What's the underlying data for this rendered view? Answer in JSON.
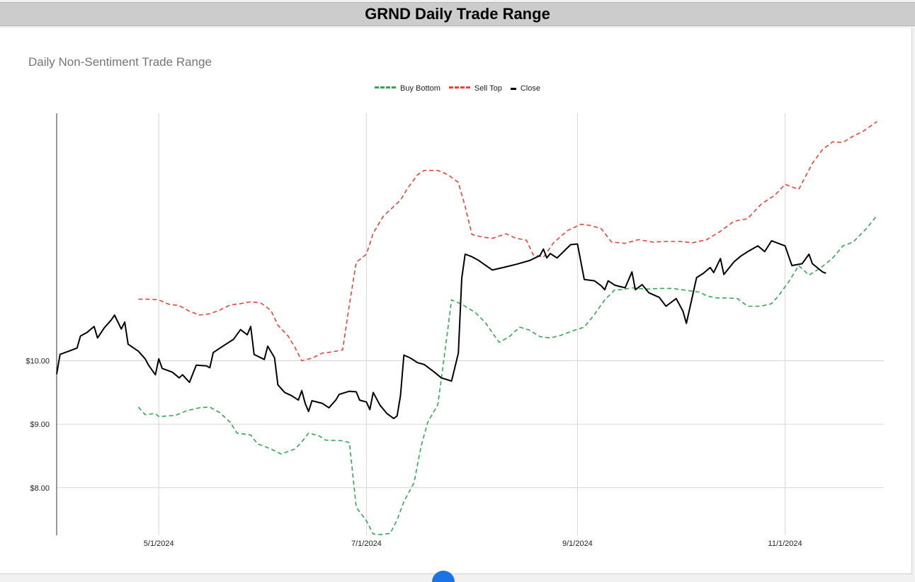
{
  "header": {
    "title": "GRND Daily Trade Range"
  },
  "chart_data": {
    "type": "line",
    "title": "Daily Non-Sentiment Trade Range",
    "xlabel": "",
    "ylabel": "",
    "xlim": [
      "2024-04-01",
      "2024-11-30"
    ],
    "ylim": [
      7.25,
      13.9
    ],
    "y_ticks": [
      {
        "value": 8.0,
        "label": "$8.00"
      },
      {
        "value": 9.0,
        "label": "$9.00"
      },
      {
        "value": 10.0,
        "label": "$10.00"
      }
    ],
    "x_ticks": [
      {
        "date": "2024-05-01",
        "label": "5/1/2024"
      },
      {
        "date": "2024-07-01",
        "label": "7/1/2024"
      },
      {
        "date": "2024-09-01",
        "label": "9/1/2024"
      },
      {
        "date": "2024-11-01",
        "label": "11/1/2024"
      }
    ],
    "grid": true,
    "legend_position": "top-center",
    "series": [
      {
        "name": "Buy Bottom",
        "color": "#34a853",
        "style": "dashed",
        "points": [
          [
            "2024-04-25",
            9.27
          ],
          [
            "2024-04-27",
            9.15
          ],
          [
            "2024-04-30",
            9.17
          ],
          [
            "2024-05-01",
            9.12
          ],
          [
            "2024-05-06",
            9.14
          ],
          [
            "2024-05-09",
            9.21
          ],
          [
            "2024-05-13",
            9.26
          ],
          [
            "2024-05-16",
            9.27
          ],
          [
            "2024-05-19",
            9.18
          ],
          [
            "2024-05-22",
            9.03
          ],
          [
            "2024-05-24",
            8.86
          ],
          [
            "2024-05-28",
            8.83
          ],
          [
            "2024-05-30",
            8.69
          ],
          [
            "2024-06-03",
            8.61
          ],
          [
            "2024-06-06",
            8.53
          ],
          [
            "2024-06-10",
            8.61
          ],
          [
            "2024-06-12",
            8.72
          ],
          [
            "2024-06-14",
            8.86
          ],
          [
            "2024-06-17",
            8.82
          ],
          [
            "2024-06-19",
            8.75
          ],
          [
            "2024-06-24",
            8.74
          ],
          [
            "2024-06-26",
            8.71
          ],
          [
            "2024-06-28",
            7.69
          ],
          [
            "2024-07-01",
            7.48
          ],
          [
            "2024-07-03",
            7.27
          ],
          [
            "2024-07-05",
            7.26
          ],
          [
            "2024-07-08",
            7.28
          ],
          [
            "2024-07-10",
            7.49
          ],
          [
            "2024-07-12",
            7.78
          ],
          [
            "2024-07-15",
            8.08
          ],
          [
            "2024-07-17",
            8.64
          ],
          [
            "2024-07-19",
            9.03
          ],
          [
            "2024-07-22",
            9.31
          ],
          [
            "2024-07-24",
            10.12
          ],
          [
            "2024-07-26",
            10.96
          ],
          [
            "2024-07-29",
            10.89
          ],
          [
            "2024-08-02",
            10.76
          ],
          [
            "2024-08-05",
            10.6
          ],
          [
            "2024-08-07",
            10.44
          ],
          [
            "2024-08-09",
            10.29
          ],
          [
            "2024-08-12",
            10.38
          ],
          [
            "2024-08-15",
            10.53
          ],
          [
            "2024-08-18",
            10.48
          ],
          [
            "2024-08-21",
            10.38
          ],
          [
            "2024-08-24",
            10.36
          ],
          [
            "2024-08-27",
            10.4
          ],
          [
            "2024-08-30",
            10.46
          ],
          [
            "2024-09-03",
            10.53
          ],
          [
            "2024-09-06",
            10.73
          ],
          [
            "2024-09-09",
            10.96
          ],
          [
            "2024-09-12",
            11.12
          ],
          [
            "2024-09-14",
            11.12
          ],
          [
            "2024-09-17",
            11.15
          ],
          [
            "2024-09-21",
            11.13
          ],
          [
            "2024-09-25",
            11.14
          ],
          [
            "2024-09-29",
            11.14
          ],
          [
            "2024-10-03",
            11.11
          ],
          [
            "2024-10-07",
            11.08
          ],
          [
            "2024-10-09",
            11.02
          ],
          [
            "2024-10-12",
            10.99
          ],
          [
            "2024-10-15",
            10.99
          ],
          [
            "2024-10-18",
            10.98
          ],
          [
            "2024-10-21",
            10.86
          ],
          [
            "2024-10-25",
            10.86
          ],
          [
            "2024-10-28",
            10.9
          ],
          [
            "2024-10-30",
            11.02
          ],
          [
            "2024-11-02",
            11.24
          ],
          [
            "2024-11-05",
            11.5
          ],
          [
            "2024-11-08",
            11.35
          ],
          [
            "2024-11-11",
            11.45
          ],
          [
            "2024-11-13",
            11.53
          ],
          [
            "2024-11-15",
            11.62
          ],
          [
            "2024-11-18",
            11.81
          ],
          [
            "2024-11-21",
            11.87
          ],
          [
            "2024-11-25",
            12.09
          ],
          [
            "2024-11-28",
            12.29
          ]
        ]
      },
      {
        "name": "Sell Top",
        "color": "#ea4335",
        "style": "dashed",
        "points": [
          [
            "2024-04-25",
            10.97
          ],
          [
            "2024-04-28",
            10.97
          ],
          [
            "2024-05-01",
            10.96
          ],
          [
            "2024-05-04",
            10.89
          ],
          [
            "2024-05-07",
            10.87
          ],
          [
            "2024-05-10",
            10.78
          ],
          [
            "2024-05-13",
            10.72
          ],
          [
            "2024-05-16",
            10.74
          ],
          [
            "2024-05-19",
            10.8
          ],
          [
            "2024-05-22",
            10.88
          ],
          [
            "2024-05-25",
            10.9
          ],
          [
            "2024-05-28",
            10.93
          ],
          [
            "2024-05-31",
            10.91
          ],
          [
            "2024-06-03",
            10.79
          ],
          [
            "2024-06-05",
            10.56
          ],
          [
            "2024-06-08",
            10.39
          ],
          [
            "2024-06-10",
            10.21
          ],
          [
            "2024-06-12",
            10.0
          ],
          [
            "2024-06-15",
            10.04
          ],
          [
            "2024-06-18",
            10.12
          ],
          [
            "2024-06-21",
            10.14
          ],
          [
            "2024-06-24",
            10.17
          ],
          [
            "2024-06-26",
            10.89
          ],
          [
            "2024-06-28",
            11.55
          ],
          [
            "2024-07-01",
            11.68
          ],
          [
            "2024-07-03",
            12.01
          ],
          [
            "2024-07-06",
            12.28
          ],
          [
            "2024-07-09",
            12.43
          ],
          [
            "2024-07-11",
            12.53
          ],
          [
            "2024-07-13",
            12.71
          ],
          [
            "2024-07-16",
            12.93
          ],
          [
            "2024-07-18",
            13.0
          ],
          [
            "2024-07-22",
            13.0
          ],
          [
            "2024-07-25",
            12.93
          ],
          [
            "2024-07-28",
            12.81
          ],
          [
            "2024-07-30",
            12.43
          ],
          [
            "2024-08-01",
            11.99
          ],
          [
            "2024-08-04",
            11.95
          ],
          [
            "2024-08-07",
            11.93
          ],
          [
            "2024-08-11",
            12.0
          ],
          [
            "2024-08-14",
            11.93
          ],
          [
            "2024-08-17",
            11.9
          ],
          [
            "2024-08-19",
            11.67
          ],
          [
            "2024-08-22",
            11.63
          ],
          [
            "2024-08-25",
            11.86
          ],
          [
            "2024-08-29",
            12.05
          ],
          [
            "2024-09-02",
            12.15
          ],
          [
            "2024-09-05",
            12.13
          ],
          [
            "2024-09-08",
            12.08
          ],
          [
            "2024-09-11",
            11.87
          ],
          [
            "2024-09-15",
            11.85
          ],
          [
            "2024-09-19",
            11.91
          ],
          [
            "2024-09-23",
            11.87
          ],
          [
            "2024-09-27",
            11.88
          ],
          [
            "2024-10-01",
            11.88
          ],
          [
            "2024-10-05",
            11.86
          ],
          [
            "2024-10-09",
            11.91
          ],
          [
            "2024-10-13",
            12.04
          ],
          [
            "2024-10-17",
            12.2
          ],
          [
            "2024-10-21",
            12.24
          ],
          [
            "2024-10-25",
            12.47
          ],
          [
            "2024-10-29",
            12.61
          ],
          [
            "2024-11-01",
            12.78
          ],
          [
            "2024-11-05",
            12.7
          ],
          [
            "2024-11-09",
            13.11
          ],
          [
            "2024-11-12",
            13.33
          ],
          [
            "2024-11-15",
            13.45
          ],
          [
            "2024-11-18",
            13.44
          ],
          [
            "2024-11-21",
            13.54
          ],
          [
            "2024-11-24",
            13.62
          ],
          [
            "2024-11-28",
            13.77
          ]
        ]
      },
      {
        "name": "Close",
        "color": "#000000",
        "style": "solid",
        "points": [
          [
            "2024-04-01",
            9.79
          ],
          [
            "2024-04-02",
            10.1
          ],
          [
            "2024-04-05",
            10.16
          ],
          [
            "2024-04-07",
            10.2
          ],
          [
            "2024-04-08",
            10.39
          ],
          [
            "2024-04-10",
            10.45
          ],
          [
            "2024-04-12",
            10.54
          ],
          [
            "2024-04-13",
            10.36
          ],
          [
            "2024-04-15",
            10.52
          ],
          [
            "2024-04-17",
            10.64
          ],
          [
            "2024-04-18",
            10.72
          ],
          [
            "2024-04-20",
            10.5
          ],
          [
            "2024-04-21",
            10.61
          ],
          [
            "2024-04-22",
            10.26
          ],
          [
            "2024-04-25",
            10.15
          ],
          [
            "2024-04-27",
            10.03
          ],
          [
            "2024-04-28",
            9.93
          ],
          [
            "2024-04-30",
            9.78
          ],
          [
            "2024-05-01",
            10.03
          ],
          [
            "2024-05-02",
            9.88
          ],
          [
            "2024-05-05",
            9.82
          ],
          [
            "2024-05-07",
            9.73
          ],
          [
            "2024-05-08",
            9.78
          ],
          [
            "2024-05-10",
            9.66
          ],
          [
            "2024-05-12",
            9.93
          ],
          [
            "2024-05-15",
            9.92
          ],
          [
            "2024-05-16",
            9.89
          ],
          [
            "2024-05-17",
            10.13
          ],
          [
            "2024-05-19",
            10.2
          ],
          [
            "2024-05-21",
            10.27
          ],
          [
            "2024-05-23",
            10.34
          ],
          [
            "2024-05-25",
            10.49
          ],
          [
            "2024-05-27",
            10.41
          ],
          [
            "2024-05-28",
            10.54
          ],
          [
            "2024-05-29",
            10.1
          ],
          [
            "2024-06-01",
            10.02
          ],
          [
            "2024-06-02",
            10.23
          ],
          [
            "2024-06-04",
            10.05
          ],
          [
            "2024-06-05",
            9.62
          ],
          [
            "2024-06-07",
            9.5
          ],
          [
            "2024-06-09",
            9.45
          ],
          [
            "2024-06-11",
            9.38
          ],
          [
            "2024-06-12",
            9.53
          ],
          [
            "2024-06-13",
            9.33
          ],
          [
            "2024-06-14",
            9.2
          ],
          [
            "2024-06-15",
            9.37
          ],
          [
            "2024-06-18",
            9.33
          ],
          [
            "2024-06-20",
            9.26
          ],
          [
            "2024-06-22",
            9.38
          ],
          [
            "2024-06-23",
            9.47
          ],
          [
            "2024-06-26",
            9.52
          ],
          [
            "2024-06-28",
            9.51
          ],
          [
            "2024-06-29",
            9.38
          ],
          [
            "2024-07-01",
            9.35
          ],
          [
            "2024-07-02",
            9.23
          ],
          [
            "2024-07-03",
            9.5
          ],
          [
            "2024-07-05",
            9.3
          ],
          [
            "2024-07-07",
            9.17
          ],
          [
            "2024-07-09",
            9.09
          ],
          [
            "2024-07-10",
            9.13
          ],
          [
            "2024-07-11",
            9.45
          ],
          [
            "2024-07-12",
            10.09
          ],
          [
            "2024-07-14",
            10.04
          ],
          [
            "2024-07-16",
            9.97
          ],
          [
            "2024-07-18",
            9.94
          ],
          [
            "2024-07-21",
            9.82
          ],
          [
            "2024-07-23",
            9.73
          ],
          [
            "2024-07-26",
            9.68
          ],
          [
            "2024-07-28",
            10.12
          ],
          [
            "2024-07-29",
            11.3
          ],
          [
            "2024-07-30",
            11.68
          ],
          [
            "2024-08-01",
            11.64
          ],
          [
            "2024-08-03",
            11.58
          ],
          [
            "2024-08-07",
            11.43
          ],
          [
            "2024-08-11",
            11.48
          ],
          [
            "2024-08-14",
            11.52
          ],
          [
            "2024-08-18",
            11.58
          ],
          [
            "2024-08-21",
            11.66
          ],
          [
            "2024-08-22",
            11.76
          ],
          [
            "2024-08-23",
            11.62
          ],
          [
            "2024-08-24",
            11.69
          ],
          [
            "2024-08-26",
            11.62
          ],
          [
            "2024-08-30",
            11.83
          ],
          [
            "2024-09-01",
            11.84
          ],
          [
            "2024-09-03",
            11.28
          ],
          [
            "2024-09-06",
            11.26
          ],
          [
            "2024-09-08",
            11.18
          ],
          [
            "2024-09-09",
            11.12
          ],
          [
            "2024-09-10",
            11.26
          ],
          [
            "2024-09-12",
            11.19
          ],
          [
            "2024-09-15",
            11.15
          ],
          [
            "2024-09-17",
            11.4
          ],
          [
            "2024-09-18",
            11.12
          ],
          [
            "2024-09-20",
            11.2
          ],
          [
            "2024-09-22",
            11.07
          ],
          [
            "2024-09-25",
            11.0
          ],
          [
            "2024-09-27",
            10.86
          ],
          [
            "2024-09-30",
            10.98
          ],
          [
            "2024-10-02",
            10.78
          ],
          [
            "2024-10-03",
            10.59
          ],
          [
            "2024-10-06",
            11.31
          ],
          [
            "2024-10-08",
            11.38
          ],
          [
            "2024-10-10",
            11.47
          ],
          [
            "2024-10-11",
            11.39
          ],
          [
            "2024-10-13",
            11.61
          ],
          [
            "2024-10-14",
            11.36
          ],
          [
            "2024-10-17",
            11.56
          ],
          [
            "2024-10-19",
            11.65
          ],
          [
            "2024-10-21",
            11.72
          ],
          [
            "2024-10-24",
            11.81
          ],
          [
            "2024-10-26",
            11.72
          ],
          [
            "2024-10-28",
            11.89
          ],
          [
            "2024-10-30",
            11.85
          ],
          [
            "2024-11-01",
            11.81
          ],
          [
            "2024-11-03",
            11.5
          ],
          [
            "2024-11-06",
            11.53
          ],
          [
            "2024-11-08",
            11.68
          ],
          [
            "2024-11-09",
            11.53
          ],
          [
            "2024-11-12",
            11.4
          ],
          [
            "2024-11-13",
            11.38
          ]
        ]
      }
    ]
  },
  "legend": {
    "items": [
      {
        "label": "Buy Bottom",
        "color": "#34a853"
      },
      {
        "label": "Sell Top",
        "color": "#ea4335"
      },
      {
        "label": "Close",
        "color": "#000000"
      }
    ]
  }
}
